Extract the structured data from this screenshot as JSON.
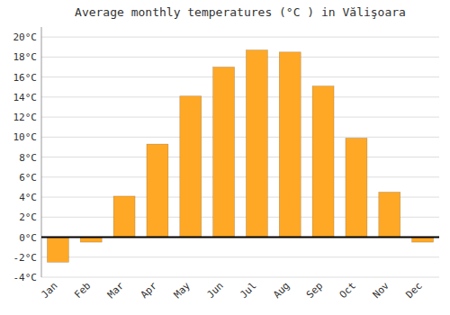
{
  "chart_data": {
    "type": "bar",
    "title": "Average monthly temperatures (°C ) in Vălişoara",
    "categories": [
      "Jan",
      "Feb",
      "Mar",
      "Apr",
      "May",
      "Jun",
      "Jul",
      "Aug",
      "Sep",
      "Oct",
      "Nov",
      "Dec"
    ],
    "values": [
      -2.5,
      -0.5,
      4.1,
      9.3,
      14.1,
      17.0,
      18.7,
      18.5,
      15.1,
      9.9,
      4.5,
      -0.5
    ],
    "color": "#FFA826",
    "ylim": [
      -4,
      21
    ],
    "yticks": [
      {
        "value": -4,
        "label": "-4°C"
      },
      {
        "value": -2,
        "label": "-2°C"
      },
      {
        "value": 0,
        "label": "0°C"
      },
      {
        "value": 2,
        "label": "2°C"
      },
      {
        "value": 4,
        "label": "4°C"
      },
      {
        "value": 6,
        "label": "6°C"
      },
      {
        "value": 8,
        "label": "8°C"
      },
      {
        "value": 10,
        "label": "10°C"
      },
      {
        "value": 12,
        "label": "12°C"
      },
      {
        "value": 14,
        "label": "14°C"
      },
      {
        "value": 16,
        "label": "16°C"
      },
      {
        "value": 18,
        "label": "18°C"
      },
      {
        "value": 20,
        "label": "20°C"
      }
    ],
    "grid": true
  }
}
